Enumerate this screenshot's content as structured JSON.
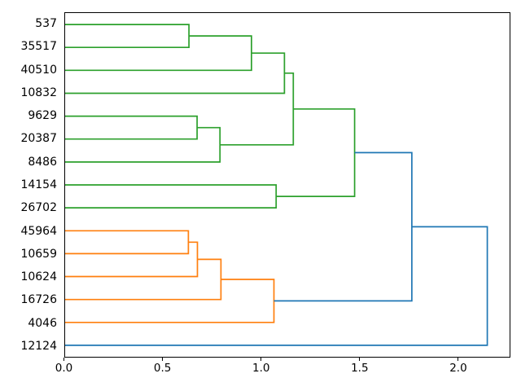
{
  "figure": {
    "background": "#ffffff",
    "title": ""
  },
  "chart_data": {
    "type": "dendrogram",
    "orientation": "horizontal-left-labels",
    "title": "",
    "xlabel": "",
    "ylabel": "",
    "grid": false,
    "legend": null,
    "leaves": [
      "537",
      "35517",
      "40510",
      "10832",
      "9629",
      "20387",
      "8486",
      "14154",
      "26702",
      "45964",
      "10659",
      "10624",
      "16726",
      "4046",
      "12124"
    ],
    "xlim": [
      0,
      2.254
    ],
    "x_ticks": [
      {
        "value": 0.0,
        "label": "0.0"
      },
      {
        "value": 0.5,
        "label": "0.5"
      },
      {
        "value": 1.0,
        "label": "1.0"
      },
      {
        "value": 1.5,
        "label": "1.5"
      },
      {
        "value": 2.0,
        "label": "2.0"
      }
    ],
    "colors": {
      "blue": "#1f77b4",
      "green": "#2ca02c",
      "orange": "#ff7f0e",
      "spine": "#000000",
      "text": "#000000"
    },
    "tree": {
      "dist": 2.141,
      "color": "blue",
      "children": [
        {
          "dist": 1.758,
          "color": "blue",
          "children": [
            {
              "dist": 1.468,
              "color": "green",
              "children": [
                {
                  "dist": 1.157,
                  "color": "green",
                  "children": [
                    {
                      "dist": 1.112,
                      "color": "green",
                      "children": [
                        {
                          "dist": 0.945,
                          "color": "green",
                          "children": [
                            {
                              "dist": 0.628,
                              "color": "green",
                              "children": [
                                {
                                  "leaf": "537"
                                },
                                {
                                  "leaf": "35517"
                                }
                              ]
                            },
                            {
                              "leaf": "40510"
                            }
                          ]
                        },
                        {
                          "leaf": "10832"
                        }
                      ]
                    },
                    {
                      "dist": 0.785,
                      "color": "green",
                      "children": [
                        {
                          "dist": 0.669,
                          "color": "green",
                          "children": [
                            {
                              "leaf": "9629"
                            },
                            {
                              "leaf": "20387"
                            }
                          ]
                        },
                        {
                          "leaf": "8486"
                        }
                      ]
                    }
                  ]
                },
                {
                  "dist": 1.07,
                  "color": "green",
                  "children": [
                    {
                      "leaf": "14154"
                    },
                    {
                      "leaf": "26702"
                    }
                  ]
                }
              ]
            },
            {
              "dist": 1.059,
              "color": "orange",
              "children": [
                {
                  "dist": 0.79,
                  "color": "orange",
                  "children": [
                    {
                      "dist": 0.671,
                      "color": "orange",
                      "children": [
                        {
                          "dist": 0.625,
                          "color": "orange",
                          "children": [
                            {
                              "leaf": "45964"
                            },
                            {
                              "leaf": "10659"
                            }
                          ]
                        },
                        {
                          "leaf": "10624"
                        }
                      ]
                    },
                    {
                      "leaf": "16726"
                    }
                  ]
                },
                {
                  "leaf": "4046"
                }
              ]
            }
          ]
        },
        {
          "leaf": "12124"
        }
      ]
    }
  }
}
